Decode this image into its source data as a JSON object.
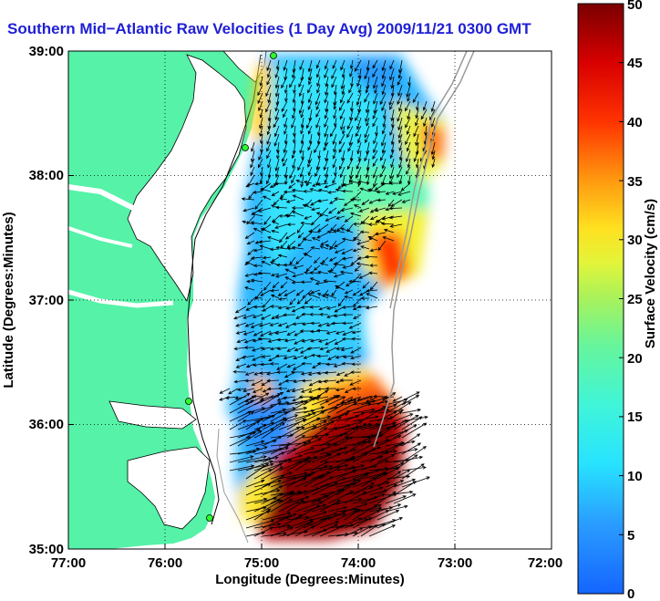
{
  "title": "Southern Mid−Atlantic Raw Velocities (1 Day Avg) 2009/11/21 0300 GMT",
  "xlabel": "Longitude (Degrees:Minutes)",
  "ylabel": "Latitude (Degrees:Minutes)",
  "x_ticks": [
    "77:00",
    "76:00",
    "75:00",
    "74:00",
    "73:00",
    "72:00"
  ],
  "y_ticks": [
    "39:00",
    "38:00",
    "37:00",
    "36:00",
    "35:00"
  ],
  "colorbar": {
    "label": "Surface Velocity (cm/s)",
    "ticks": [
      "0",
      "5",
      "10",
      "15",
      "20",
      "25",
      "30",
      "35",
      "40",
      "45",
      "50"
    ],
    "range": [
      0,
      50
    ]
  },
  "colors": {
    "land": "#55f2a8",
    "title": "#1f1fd6",
    "vectors": "#000000"
  },
  "chart_data": {
    "type": "heatmap",
    "title": "Southern Mid−Atlantic Raw Velocities (1 Day Avg) 2009/11/21 0300 GMT",
    "xlabel": "Longitude (Degrees:Minutes)",
    "ylabel": "Latitude (Degrees:Minutes)",
    "xlim": [
      -77,
      -72
    ],
    "ylim": [
      35,
      39
    ],
    "grid": true,
    "colorbar_label": "Surface Velocity (cm/s)",
    "colorbar_range": [
      0,
      50
    ],
    "regions": [
      {
        "lon": [
          -75.0,
          -73.6
        ],
        "lat": [
          38.0,
          39.0
        ],
        "speed_cm_s": 12
      },
      {
        "lon": [
          -73.6,
          -73.1
        ],
        "lat": [
          37.8,
          38.5
        ],
        "speed_cm_s": 32
      },
      {
        "lon": [
          -75.0,
          -73.8
        ],
        "lat": [
          36.4,
          37.6
        ],
        "speed_cm_s": 14
      },
      {
        "lon": [
          -74.2,
          -73.5
        ],
        "lat": [
          36.9,
          37.4
        ],
        "speed_cm_s": 38
      },
      {
        "lon": [
          -75.1,
          -74.2
        ],
        "lat": [
          35.8,
          36.4
        ],
        "speed_cm_s": 10
      },
      {
        "lon": [
          -74.5,
          -73.9
        ],
        "lat": [
          35.9,
          36.5
        ],
        "speed_cm_s": 30
      },
      {
        "lon": [
          -75.0,
          -73.4
        ],
        "lat": [
          35.1,
          36.1
        ],
        "speed_cm_s": 50
      }
    ]
  }
}
